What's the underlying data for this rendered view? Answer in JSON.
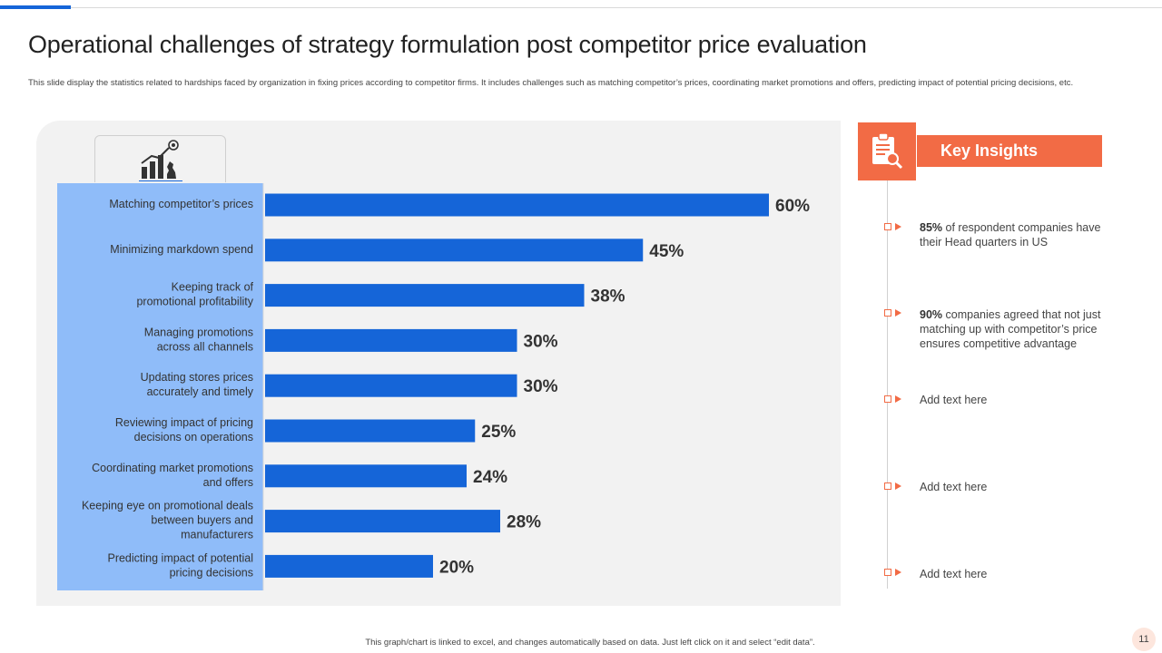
{
  "slide": {
    "title": "Operational challenges of strategy formulation post competitor price evaluation",
    "subtitle": "This slide display the statistics related to hardships faced by organization in fixing prices according to competitor firms. It includes challenges such as matching competitor’s prices, coordinating market promotions and offers, predicting impact of potential pricing decisions, etc.",
    "footer": "This graph/chart is linked to excel, and changes automatically based on data. Just left click on it and select “edit data”.",
    "page_number": "11"
  },
  "colors": {
    "bar": "#1565d8",
    "label_column": "#8fbcf9",
    "accent": "#f26b45",
    "panel": "#f2f2f2"
  },
  "icons": {
    "chart_icon": "growth-chart-chess-icon",
    "insights_icon": "clipboard-search-icon"
  },
  "chart_data": {
    "type": "bar",
    "orientation": "horizontal",
    "title": "",
    "xlabel": "",
    "ylabel": "",
    "xlim": [
      0,
      60
    ],
    "unit": "%",
    "categories": [
      [
        "Matching competitor’s prices"
      ],
      [
        "Minimizing markdown spend"
      ],
      [
        "Keeping track of",
        "promotional  profitability"
      ],
      [
        "Managing promotions",
        "across all channels"
      ],
      [
        "Updating stores prices",
        "accurately and timely"
      ],
      [
        "Reviewing  impact of pricing",
        "decisions on operations"
      ],
      [
        "Coordinating  market promotions",
        "and offers"
      ],
      [
        "Keeping eye on promotional deals",
        "between buyers and",
        "manufacturers"
      ],
      [
        "Predicting impact of potential",
        "pricing decisions"
      ]
    ],
    "values": [
      60,
      45,
      38,
      30,
      30,
      25,
      24,
      28,
      20
    ],
    "value_labels": [
      "60%",
      "45%",
      "38%",
      "30%",
      "30%",
      "25%",
      "24%",
      "28%",
      "20%"
    ]
  },
  "insights": {
    "heading": "Key Insights",
    "items": [
      {
        "bold": "85%",
        "text": " of respondent companies have their Head  quarters in US"
      },
      {
        "bold": "90%",
        "text": " companies agreed that not just matching up with competitor’s price ensures competitive advantage"
      },
      {
        "bold": "",
        "text": "Add text here"
      },
      {
        "bold": "",
        "text": "Add text here"
      },
      {
        "bold": "",
        "text": "Add text here"
      }
    ]
  }
}
